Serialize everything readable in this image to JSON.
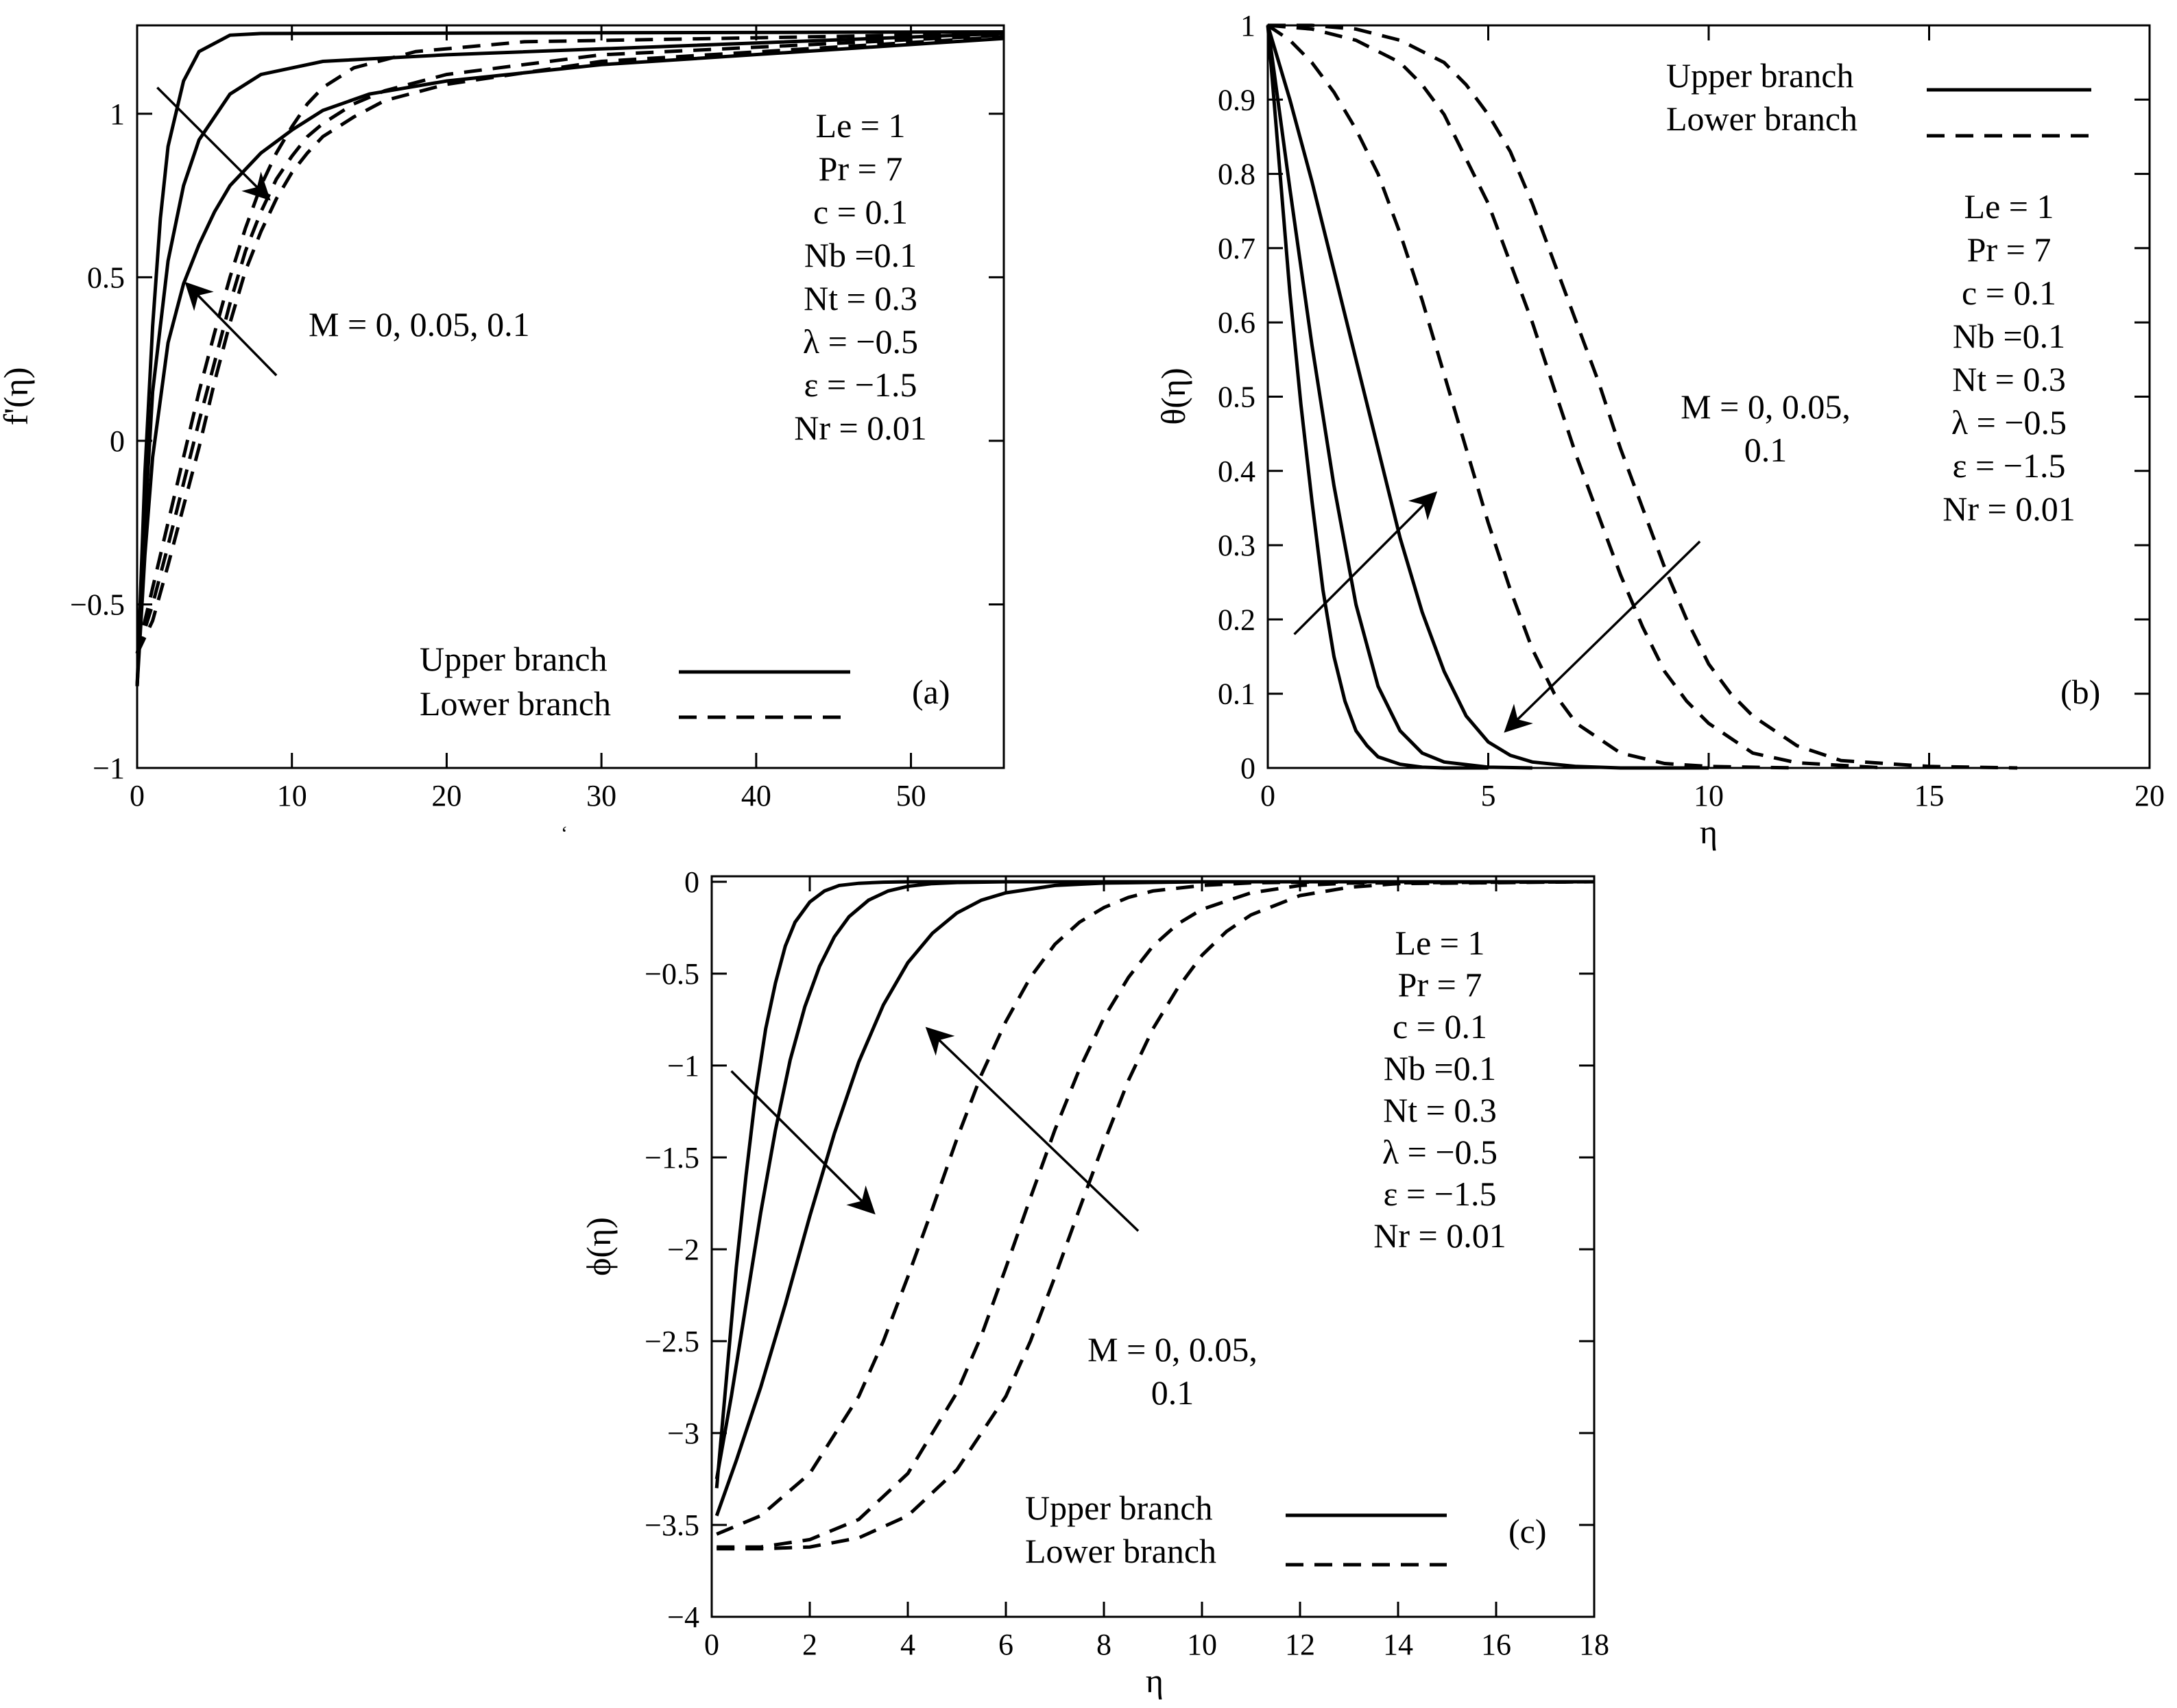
{
  "chart_data": [
    {
      "type": "line",
      "panel_label": "(a)",
      "title": "",
      "xlabel": "",
      "ylabel": "f'(η)",
      "xlim": [
        0,
        56
      ],
      "ylim": [
        -1,
        1.27
      ],
      "xticks": [
        0,
        10,
        20,
        30,
        40,
        50
      ],
      "yticks": [
        -1,
        -0.5,
        0,
        0.5,
        1
      ],
      "ytick_labels": [
        "−1",
        "−0.5",
        "0",
        "0.5",
        "1"
      ],
      "parameters": [
        "Le = 1",
        "Pr = 7",
        "c = 0.1",
        "Nb =0.1",
        "Nt = 0.3",
        "λ = −0.5",
        "ε = −1.5",
        "Nr = 0.01"
      ],
      "annotation": "M = 0, 0.05, 0.1",
      "legend": {
        "upper": "Upper branch",
        "lower": "Lower branch"
      },
      "series": [
        {
          "name": "Upper branch, M = 0",
          "style": "solid",
          "x": [
            0,
            0.5,
            1,
            1.5,
            2,
            3,
            4,
            6,
            8,
            56
          ],
          "y": [
            -0.75,
            -0.1,
            0.35,
            0.68,
            0.9,
            1.1,
            1.19,
            1.24,
            1.245,
            1.25
          ]
        },
        {
          "name": "Upper branch, M = 0.05",
          "style": "solid",
          "x": [
            0,
            0.5,
            1,
            2,
            3,
            4,
            6,
            8,
            12,
            20,
            56
          ],
          "y": [
            -0.75,
            -0.25,
            0.15,
            0.55,
            0.78,
            0.92,
            1.06,
            1.12,
            1.16,
            1.18,
            1.245
          ]
        },
        {
          "name": "Upper branch, M = 0.1",
          "style": "solid",
          "x": [
            0,
            0.5,
            1,
            2,
            3,
            4,
            5,
            6,
            8,
            10,
            12,
            15,
            20,
            30,
            56
          ],
          "y": [
            -0.75,
            -0.35,
            -0.05,
            0.3,
            0.48,
            0.6,
            0.7,
            0.78,
            0.88,
            0.95,
            1.01,
            1.06,
            1.1,
            1.15,
            1.23
          ]
        },
        {
          "name": "Lower branch, M = 0",
          "style": "dashed",
          "x": [
            0,
            1,
            2,
            3,
            4,
            5,
            6,
            7,
            8,
            9,
            10,
            11,
            12,
            14,
            18,
            25,
            56
          ],
          "y": [
            -0.65,
            -0.45,
            -0.25,
            -0.05,
            0.15,
            0.33,
            0.5,
            0.65,
            0.78,
            0.88,
            0.96,
            1.03,
            1.08,
            1.14,
            1.19,
            1.22,
            1.245
          ]
        },
        {
          "name": "Lower branch, M = 0.05",
          "style": "dashed",
          "x": [
            0,
            1,
            2,
            3,
            4,
            5,
            6,
            7,
            8,
            9,
            10,
            11,
            12,
            14,
            16,
            20,
            30,
            56
          ],
          "y": [
            -0.65,
            -0.5,
            -0.32,
            -0.13,
            0.06,
            0.24,
            0.42,
            0.58,
            0.7,
            0.8,
            0.87,
            0.93,
            0.97,
            1.03,
            1.07,
            1.12,
            1.18,
            1.24
          ]
        },
        {
          "name": "Lower branch, M = 0.1",
          "style": "dashed",
          "x": [
            0,
            1,
            2,
            3,
            4,
            5,
            6,
            7,
            8,
            9,
            10,
            11,
            12,
            14,
            16,
            20,
            30,
            56
          ],
          "y": [
            -0.65,
            -0.55,
            -0.38,
            -0.2,
            -0.02,
            0.18,
            0.36,
            0.52,
            0.64,
            0.74,
            0.82,
            0.88,
            0.93,
            0.99,
            1.04,
            1.09,
            1.16,
            1.235
          ]
        }
      ],
      "arrows": [
        {
          "from": [
            1.3,
            1.08
          ],
          "to": [
            8.5,
            0.74
          ]
        },
        {
          "from": [
            9,
            0.2
          ],
          "to": [
            3.2,
            0.48
          ]
        }
      ]
    },
    {
      "type": "line",
      "panel_label": "(b)",
      "title": "",
      "xlabel": "η",
      "ylabel": "θ(η)",
      "xlim": [
        0,
        20
      ],
      "ylim": [
        0,
        1
      ],
      "xticks": [
        0,
        5,
        10,
        15,
        20
      ],
      "yticks": [
        0,
        0.1,
        0.2,
        0.3,
        0.4,
        0.5,
        0.6,
        0.7,
        0.8,
        0.9,
        1
      ],
      "parameters": [
        "Le = 1",
        "Pr = 7",
        "c = 0.1",
        "Nb =0.1",
        "Nt = 0.3",
        "λ = −0.5",
        "ε = −1.5",
        "Nr = 0.01"
      ],
      "annotation": [
        "M = 0, 0.05,",
        "0.1"
      ],
      "legend": {
        "upper": "Upper branch",
        "lower": "Lower branch"
      },
      "series": [
        {
          "name": "Upper branch, M = 0",
          "style": "solid",
          "x": [
            0,
            0.25,
            0.5,
            0.75,
            1,
            1.25,
            1.5,
            1.75,
            2,
            2.25,
            2.5,
            3,
            3.5,
            4,
            5
          ],
          "y": [
            1,
            0.82,
            0.64,
            0.49,
            0.36,
            0.24,
            0.15,
            0.09,
            0.05,
            0.03,
            0.015,
            0.005,
            0.001,
            0,
            0
          ]
        },
        {
          "name": "Upper branch, M = 0.05",
          "style": "solid",
          "x": [
            0,
            0.5,
            1,
            1.5,
            2,
            2.5,
            3,
            3.5,
            4,
            5,
            6
          ],
          "y": [
            1,
            0.78,
            0.57,
            0.38,
            0.22,
            0.11,
            0.05,
            0.02,
            0.008,
            0.001,
            0
          ]
        },
        {
          "name": "Upper branch, M = 0.1",
          "style": "solid",
          "x": [
            0,
            0.5,
            1,
            1.5,
            2,
            2.5,
            3,
            3.5,
            4,
            4.5,
            5,
            5.5,
            6,
            7,
            8,
            10
          ],
          "y": [
            1,
            0.9,
            0.79,
            0.67,
            0.55,
            0.43,
            0.31,
            0.21,
            0.13,
            0.07,
            0.035,
            0.017,
            0.008,
            0.002,
            0,
            0
          ]
        },
        {
          "name": "Lower branch, M = 0",
          "style": "dashed",
          "x": [
            0,
            0.5,
            1,
            1.5,
            2,
            2.5,
            3,
            3.5,
            4,
            4.5,
            5,
            5.5,
            6,
            6.5,
            7,
            8,
            9,
            10,
            12
          ],
          "y": [
            1,
            0.98,
            0.95,
            0.91,
            0.86,
            0.8,
            0.72,
            0.63,
            0.53,
            0.43,
            0.33,
            0.24,
            0.16,
            0.1,
            0.06,
            0.02,
            0.006,
            0.002,
            0
          ]
        },
        {
          "name": "Lower branch, M = 0.05",
          "style": "dashed",
          "x": [
            0,
            1,
            2,
            3,
            3.5,
            4,
            4.5,
            5,
            5.5,
            6,
            6.5,
            7,
            7.5,
            8,
            8.5,
            9,
            9.5,
            10,
            11,
            12,
            14
          ],
          "y": [
            1,
            0.995,
            0.98,
            0.95,
            0.92,
            0.88,
            0.82,
            0.76,
            0.68,
            0.6,
            0.51,
            0.42,
            0.34,
            0.26,
            0.19,
            0.13,
            0.09,
            0.06,
            0.02,
            0.007,
            0
          ]
        },
        {
          "name": "Lower branch, M = 0.1",
          "style": "dashed",
          "x": [
            0,
            1,
            2,
            3,
            4,
            4.5,
            5,
            5.5,
            6,
            6.5,
            7,
            7.5,
            8,
            8.5,
            9,
            9.5,
            10,
            10.5,
            11,
            12,
            13,
            15,
            17
          ],
          "y": [
            1,
            1,
            0.995,
            0.98,
            0.95,
            0.92,
            0.88,
            0.83,
            0.76,
            0.68,
            0.6,
            0.52,
            0.43,
            0.35,
            0.27,
            0.2,
            0.14,
            0.1,
            0.07,
            0.03,
            0.01,
            0.002,
            0
          ]
        }
      ],
      "arrows": [
        {
          "from": [
            0.6,
            0.18
          ],
          "to": [
            3.8,
            0.37
          ]
        },
        {
          "from": [
            9.8,
            0.305
          ],
          "to": [
            5.4,
            0.05
          ]
        }
      ]
    },
    {
      "type": "line",
      "panel_label": "(c)",
      "title": "",
      "xlabel": "η",
      "ylabel": "ϕ(η)",
      "xlim": [
        0,
        18
      ],
      "ylim": [
        -4,
        0.03
      ],
      "xticks": [
        0,
        2,
        4,
        6,
        8,
        10,
        12,
        14,
        16,
        18
      ],
      "yticks": [
        -4,
        -3.5,
        -3,
        -2.5,
        -2,
        -1.5,
        -1,
        -0.5,
        0
      ],
      "ytick_labels": [
        "−4",
        "−3.5",
        "−3",
        "−2.5",
        "−2",
        "−1.5",
        "−1",
        "−0.5",
        "0"
      ],
      "parameters": [
        "Le = 1",
        "Pr = 7",
        "c = 0.1",
        "Nb =0.1",
        "Nt = 0.3",
        "λ = −0.5",
        "ε = −1.5",
        "Nr = 0.01"
      ],
      "annotation": [
        "M = 0, 0.05,",
        "0.1"
      ],
      "legend": {
        "upper": "Upper branch",
        "lower": "Lower branch"
      },
      "series": [
        {
          "name": "Upper branch, M = 0",
          "style": "solid",
          "x": [
            0.1,
            0.3,
            0.5,
            0.7,
            0.9,
            1.1,
            1.3,
            1.5,
            1.7,
            2,
            2.3,
            2.6,
            3,
            3.5,
            4,
            5,
            18
          ],
          "y": [
            -3.3,
            -2.7,
            -2.1,
            -1.6,
            -1.15,
            -0.8,
            -0.55,
            -0.35,
            -0.22,
            -0.11,
            -0.05,
            -0.02,
            -0.008,
            -0.002,
            0,
            0,
            0
          ]
        },
        {
          "name": "Upper branch, M = 0.05",
          "style": "solid",
          "x": [
            0.1,
            0.4,
            0.7,
            1,
            1.3,
            1.6,
            1.9,
            2.2,
            2.5,
            2.8,
            3.2,
            3.6,
            4,
            4.5,
            5,
            6,
            18
          ],
          "y": [
            -3.25,
            -2.8,
            -2.3,
            -1.8,
            -1.35,
            -0.97,
            -0.68,
            -0.46,
            -0.3,
            -0.19,
            -0.1,
            -0.05,
            -0.025,
            -0.01,
            -0.004,
            0,
            0
          ]
        },
        {
          "name": "Upper branch, M = 0.1",
          "style": "solid",
          "x": [
            0.1,
            0.5,
            1,
            1.5,
            2,
            2.5,
            3,
            3.5,
            4,
            4.5,
            5,
            5.5,
            6,
            7,
            8,
            10,
            18
          ],
          "y": [
            -3.45,
            -3.15,
            -2.75,
            -2.3,
            -1.82,
            -1.37,
            -0.98,
            -0.67,
            -0.44,
            -0.28,
            -0.17,
            -0.1,
            -0.06,
            -0.02,
            -0.007,
            0,
            0
          ]
        },
        {
          "name": "Lower branch, M = 0",
          "style": "dashed",
          "x": [
            0.1,
            1,
            2,
            3,
            3.5,
            4,
            4.5,
            5,
            5.5,
            6,
            6.5,
            7,
            7.5,
            8,
            8.5,
            9,
            10,
            11,
            12,
            18
          ],
          "y": [
            -3.55,
            -3.45,
            -3.22,
            -2.8,
            -2.5,
            -2.15,
            -1.78,
            -1.4,
            -1.05,
            -0.76,
            -0.52,
            -0.34,
            -0.22,
            -0.14,
            -0.085,
            -0.05,
            -0.02,
            -0.006,
            -0.002,
            0
          ]
        },
        {
          "name": "Lower branch, M = 0.05",
          "style": "dashed",
          "x": [
            0.1,
            1,
            2,
            3,
            4,
            5,
            5.5,
            6,
            6.5,
            7,
            7.5,
            8,
            8.5,
            9,
            9.5,
            10,
            11,
            12,
            13,
            18
          ],
          "y": [
            -3.62,
            -3.62,
            -3.58,
            -3.47,
            -3.22,
            -2.78,
            -2.47,
            -2.1,
            -1.72,
            -1.35,
            -1.02,
            -0.74,
            -0.52,
            -0.35,
            -0.23,
            -0.15,
            -0.06,
            -0.02,
            -0.007,
            0
          ]
        },
        {
          "name": "Lower branch, M = 0.1",
          "style": "dashed",
          "x": [
            0.1,
            1,
            2,
            3,
            4,
            5,
            6,
            6.5,
            7,
            7.5,
            8,
            8.5,
            9,
            9.5,
            10,
            10.5,
            11,
            12,
            13,
            14,
            18
          ],
          "y": [
            -3.63,
            -3.63,
            -3.62,
            -3.57,
            -3.45,
            -3.2,
            -2.8,
            -2.5,
            -2.15,
            -1.78,
            -1.42,
            -1.08,
            -0.8,
            -0.58,
            -0.4,
            -0.27,
            -0.18,
            -0.075,
            -0.03,
            -0.01,
            0
          ]
        }
      ],
      "arrows": [
        {
          "from": [
            0.4,
            -1.03
          ],
          "to": [
            3.3,
            -1.8
          ]
        },
        {
          "from": [
            8.7,
            -1.9
          ],
          "to": [
            4.4,
            -0.8
          ]
        }
      ]
    }
  ],
  "stray_mark": "ʻ"
}
